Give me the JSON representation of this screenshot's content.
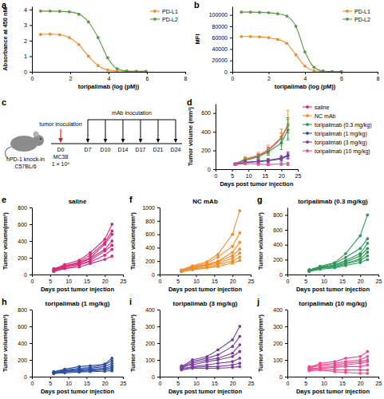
{
  "chart_data": [
    {
      "panel": "a",
      "type": "line",
      "line_style": "smooth",
      "marker": "circle",
      "legend": "upper right",
      "x_label": "toripalimab (log (pM))",
      "y_label": "Absorbance at 450 nM",
      "x": [
        0.45,
        0.95,
        1.45,
        1.95,
        2.45,
        2.95,
        3.45,
        3.95,
        4.45,
        4.95,
        5.45,
        5.95
      ],
      "xlim": [
        0,
        8
      ],
      "xticks": [
        0,
        2,
        4,
        6,
        8
      ],
      "ylim": [
        0,
        4.2
      ],
      "yticks": [
        0,
        1,
        2,
        3,
        4
      ],
      "series": [
        {
          "name": "PD-L1",
          "color": "#f28c28",
          "values": [
            2.4,
            2.42,
            2.38,
            2.2,
            1.75,
            1.0,
            0.4,
            0.12,
            0.05,
            0.03,
            0.03,
            0.03
          ]
        },
        {
          "name": "PD-L2",
          "color": "#5a9a3c",
          "values": [
            3.9,
            3.9,
            3.88,
            3.85,
            3.7,
            3.2,
            2.2,
            0.9,
            0.2,
            0.05,
            0.03,
            0.03
          ]
        }
      ]
    },
    {
      "panel": "b",
      "type": "line",
      "line_style": "smooth",
      "marker": "circle",
      "legend": "upper right",
      "x_label": "toripalimab (log (pM))",
      "y_label": "MFI",
      "x": [
        0.5,
        1.0,
        1.5,
        2.0,
        2.5,
        3.0,
        3.5,
        4.0,
        4.5,
        5.0,
        5.5,
        6.0
      ],
      "xlim": [
        0,
        8
      ],
      "xticks": [
        0,
        2,
        4,
        6,
        8
      ],
      "ylim": [
        0,
        115000
      ],
      "yticks": [
        0,
        20000,
        40000,
        60000,
        80000,
        100000
      ],
      "series": [
        {
          "name": "PD-L1",
          "color": "#f28c28",
          "values": [
            62000,
            62000,
            61500,
            60000,
            57000,
            50000,
            30000,
            10000,
            2000,
            500,
            300,
            300
          ]
        },
        {
          "name": "PD-L2",
          "color": "#5a9a3c",
          "values": [
            105000,
            105000,
            104500,
            104000,
            102000,
            98000,
            80000,
            35000,
            8000,
            1500,
            500,
            400
          ]
        }
      ]
    },
    {
      "panel": "d",
      "type": "line",
      "line_style": "solid",
      "marker": "circle",
      "legend": "right",
      "x_label": "Days post tumor injection",
      "y_label": "Tumor volume (mm³)",
      "x": [
        6,
        9,
        13,
        16,
        20,
        22
      ],
      "xlim": [
        0,
        25
      ],
      "xticks": [
        0,
        5,
        10,
        15,
        20,
        25
      ],
      "ylim": [
        0,
        700
      ],
      "yticks": [
        0,
        200,
        400,
        600
      ],
      "series": [
        {
          "name": "saline",
          "color": "#d42a7c",
          "values": [
            55,
            105,
            140,
            200,
            330,
            470
          ],
          "errors": [
            10,
            20,
            25,
            35,
            55,
            80
          ]
        },
        {
          "name": "NC mAb",
          "color": "#f28c28",
          "values": [
            60,
            110,
            150,
            210,
            340,
            480
          ],
          "errors": [
            10,
            20,
            30,
            45,
            90,
            150
          ]
        },
        {
          "name": "toripalimab (0.3 mg/kg)",
          "color": "#2e9a5a",
          "values": [
            55,
            95,
            130,
            185,
            280,
            420
          ],
          "errors": [
            8,
            15,
            25,
            35,
            70,
            110
          ]
        },
        {
          "name": "toripalimab (1 mg/kg)",
          "color": "#2d4fa3",
          "values": [
            50,
            70,
            80,
            90,
            110,
            140
          ],
          "errors": [
            8,
            12,
            15,
            18,
            25,
            30
          ]
        },
        {
          "name": "toripalimab (3 mg/kg)",
          "color": "#7a3e9d",
          "values": [
            55,
            75,
            85,
            95,
            120,
            150
          ],
          "errors": [
            8,
            12,
            15,
            18,
            25,
            35
          ]
        },
        {
          "name": "toripalimab (10 mg/kg)",
          "color": "#f04a90",
          "values": [
            50,
            60,
            55,
            50,
            55,
            55
          ],
          "errors": [
            8,
            10,
            12,
            12,
            15,
            18
          ]
        }
      ]
    },
    {
      "panel": "e",
      "type": "line",
      "line_style": "solid",
      "marker": "circle",
      "title": "saline",
      "color": "#d42a7c",
      "x_label": "Days post tumor injection",
      "y_label": "Tumor volume(mm³)",
      "x": [
        6,
        9,
        13,
        16,
        20,
        22
      ],
      "xlim": [
        0,
        25
      ],
      "xticks": [
        0,
        5,
        10,
        15,
        20,
        25
      ],
      "ylim": [
        0,
        800
      ],
      "yticks": [
        0,
        200,
        400,
        600,
        800
      ],
      "series": [
        {
          "values": [
            60,
            120,
            170,
            260,
            420,
            600
          ]
        },
        {
          "values": [
            50,
            100,
            150,
            230,
            380,
            520
          ]
        },
        {
          "values": [
            45,
            90,
            140,
            200,
            360,
            480
          ]
        },
        {
          "values": [
            70,
            110,
            130,
            190,
            300,
            400
          ]
        },
        {
          "values": [
            40,
            80,
            110,
            170,
            280,
            350
          ]
        },
        {
          "values": [
            55,
            100,
            120,
            150,
            230,
            300
          ]
        },
        {
          "values": [
            35,
            70,
            90,
            130,
            180,
            220
          ]
        }
      ]
    },
    {
      "panel": "f",
      "type": "line",
      "line_style": "solid",
      "marker": "circle",
      "title": "NC mAb",
      "color": "#f28c28",
      "x_label": "Days post tumor injection",
      "y_label": "Tumor volume(mm³)",
      "x": [
        6,
        9,
        13,
        16,
        20,
        22
      ],
      "xlim": [
        0,
        25
      ],
      "xticks": [
        0,
        5,
        10,
        15,
        20,
        25
      ],
      "ylim": [
        0,
        1000
      ],
      "yticks": [
        0,
        200,
        400,
        600,
        800,
        1000
      ],
      "series": [
        {
          "values": [
            70,
            130,
            190,
            300,
            600,
            950
          ]
        },
        {
          "values": [
            60,
            120,
            170,
            260,
            420,
            620
          ]
        },
        {
          "values": [
            55,
            110,
            150,
            200,
            330,
            480
          ]
        },
        {
          "values": [
            50,
            100,
            140,
            190,
            280,
            380
          ]
        },
        {
          "values": [
            65,
            90,
            130,
            170,
            240,
            320
          ]
        },
        {
          "values": [
            45,
            80,
            110,
            150,
            200,
            260
          ]
        },
        {
          "values": [
            40,
            70,
            100,
            120,
            170,
            210
          ]
        }
      ]
    },
    {
      "panel": "g",
      "type": "line",
      "line_style": "solid",
      "marker": "circle",
      "title": "toripalimab (0.3 mg/kg)",
      "color": "#2e9a5a",
      "x_label": "Days post tumor injection",
      "y_label": "Tumor volume(mm³)",
      "x": [
        6,
        9,
        13,
        16,
        20,
        22
      ],
      "xlim": [
        0,
        25
      ],
      "xticks": [
        0,
        5,
        10,
        15,
        20,
        25
      ],
      "ylim": [
        0,
        900
      ],
      "yticks": [
        0,
        200,
        400,
        600,
        800
      ],
      "series": [
        {
          "values": [
            60,
            110,
            160,
            280,
            520,
            800
          ]
        },
        {
          "values": [
            55,
            100,
            150,
            230,
            350,
            480
          ]
        },
        {
          "values": [
            50,
            90,
            130,
            190,
            280,
            420
          ]
        },
        {
          "values": [
            65,
            100,
            120,
            170,
            250,
            350
          ]
        },
        {
          "values": [
            45,
            80,
            110,
            150,
            210,
            300
          ]
        },
        {
          "values": [
            55,
            90,
            100,
            140,
            190,
            250
          ]
        },
        {
          "values": [
            40,
            70,
            90,
            120,
            160,
            200
          ]
        }
      ]
    },
    {
      "panel": "h",
      "type": "line",
      "line_style": "solid",
      "marker": "circle",
      "title": "toripalimab (1 mg/kg)",
      "color": "#2d4fa3",
      "x_label": "Days post tumor injection",
      "y_label": "Tumor volume(mm³)",
      "x": [
        6,
        9,
        13,
        16,
        20,
        22
      ],
      "xlim": [
        0,
        25
      ],
      "xticks": [
        0,
        5,
        10,
        15,
        20,
        25
      ],
      "ylim": [
        0,
        800
      ],
      "yticks": [
        0,
        200,
        400,
        600,
        800
      ],
      "series": [
        {
          "values": [
            60,
            90,
            120,
            130,
            150,
            220
          ]
        },
        {
          "values": [
            50,
            80,
            100,
            110,
            140,
            190
          ]
        },
        {
          "values": [
            55,
            70,
            90,
            100,
            120,
            160
          ]
        },
        {
          "values": [
            45,
            65,
            80,
            90,
            100,
            130
          ]
        },
        {
          "values": [
            40,
            60,
            70,
            80,
            90,
            110
          ]
        },
        {
          "values": [
            50,
            55,
            60,
            70,
            80,
            90
          ]
        },
        {
          "values": [
            35,
            45,
            55,
            60,
            65,
            70
          ]
        }
      ]
    },
    {
      "panel": "i",
      "type": "line",
      "line_style": "solid",
      "marker": "circle",
      "title": "toripalimab (3 mg/kg)",
      "color": "#7a3e9d",
      "x_label": "Days post tumor injection",
      "y_label": "Tumor volume(mm³)",
      "x": [
        6,
        9,
        13,
        16,
        20,
        22
      ],
      "xlim": [
        0,
        25
      ],
      "xticks": [
        0,
        5,
        10,
        15,
        20,
        25
      ],
      "ylim": [
        0,
        400
      ],
      "yticks": [
        0,
        100,
        200,
        300,
        400
      ],
      "series": [
        {
          "values": [
            60,
            100,
            120,
            160,
            220,
            300
          ]
        },
        {
          "values": [
            55,
            90,
            110,
            130,
            180,
            240
          ]
        },
        {
          "values": [
            50,
            80,
            100,
            110,
            140,
            190
          ]
        },
        {
          "values": [
            65,
            70,
            90,
            100,
            120,
            150
          ]
        },
        {
          "values": [
            45,
            60,
            70,
            80,
            90,
            110
          ]
        },
        {
          "values": [
            50,
            55,
            60,
            60,
            70,
            80
          ]
        },
        {
          "values": [
            40,
            50,
            50,
            50,
            55,
            60
          ]
        }
      ]
    },
    {
      "panel": "j",
      "type": "line",
      "line_style": "solid",
      "marker": "circle",
      "title": "toripalimab (10 mg/kg)",
      "color": "#f04a90",
      "x_label": "Days post tumor injection",
      "y_label": "Tumor volume(mm³)",
      "x": [
        6,
        9,
        13,
        16,
        20,
        22
      ],
      "xlim": [
        0,
        25
      ],
      "xticks": [
        0,
        5,
        10,
        15,
        20,
        25
      ],
      "ylim": [
        0,
        400
      ],
      "yticks": [
        0,
        100,
        200,
        300,
        400
      ],
      "series": [
        {
          "values": [
            55,
            80,
            90,
            110,
            120,
            150
          ]
        },
        {
          "values": [
            50,
            70,
            80,
            90,
            100,
            120
          ]
        },
        {
          "values": [
            60,
            65,
            70,
            80,
            90,
            100
          ]
        },
        {
          "values": [
            45,
            55,
            60,
            70,
            80,
            90
          ]
        },
        {
          "values": [
            40,
            50,
            55,
            60,
            60,
            70
          ]
        },
        {
          "values": [
            50,
            45,
            40,
            40,
            40,
            40
          ]
        },
        {
          "values": [
            35,
            40,
            30,
            25,
            20,
            20
          ]
        }
      ]
    }
  ],
  "schematic": {
    "panel": "c",
    "mouse": [
      "hPD-1 knock-in",
      "C57BL/6"
    ],
    "tumor_inoculation": "tumor inoculation",
    "mab_inoculation": "mAb inoculation",
    "day0": "D0",
    "cells": "MC38",
    "cell_count": "1 × 10⁶",
    "dosing_days": [
      "D7",
      "D10",
      "D14",
      "D17",
      "D21",
      "D24"
    ]
  }
}
